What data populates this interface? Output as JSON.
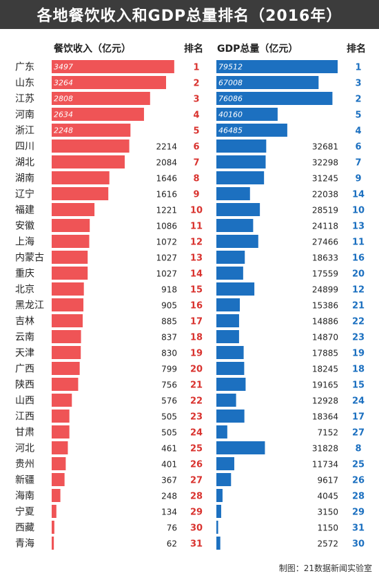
{
  "title": "各地餐饮收入和GDP总量排名（2016年）",
  "headers": {
    "catering": "餐饮收入（亿元）",
    "rank": "排名",
    "gdp": "GDP总量（亿元）",
    "gdp_rank": "排名"
  },
  "credit": "制图：21数据新闻实验室",
  "colors": {
    "catering_bar": "#ef5456",
    "gdp_bar": "#1c70c0",
    "catering_rank": "#d9332f",
    "gdp_rank": "#1c70c0",
    "title_bg": "#3c3c3c"
  },
  "chart_data": {
    "type": "bar",
    "orientation": "horizontal",
    "categories": [
      "广东",
      "山东",
      "江苏",
      "河南",
      "浙江",
      "四川",
      "湖北",
      "湖南",
      "辽宁",
      "福建",
      "安徽",
      "上海",
      "内蒙古",
      "重庆",
      "北京",
      "黑龙江",
      "吉林",
      "云南",
      "天津",
      "广西",
      "陕西",
      "山西",
      "江西",
      "甘肃",
      "河北",
      "贵州",
      "新疆",
      "海南",
      "宁夏",
      "西藏",
      "青海"
    ],
    "series": [
      {
        "name": "餐饮收入（亿元）",
        "values": [
          3497,
          3264,
          2808,
          2634,
          2248,
          2214,
          2084,
          1646,
          1616,
          1221,
          1086,
          1072,
          1027,
          1027,
          918,
          905,
          885,
          837,
          830,
          799,
          756,
          576,
          505,
          505,
          461,
          401,
          367,
          248,
          134,
          76,
          62
        ],
        "ranks": [
          1,
          2,
          3,
          4,
          5,
          6,
          7,
          8,
          9,
          10,
          11,
          12,
          13,
          14,
          15,
          16,
          17,
          18,
          19,
          20,
          21,
          22,
          23,
          24,
          25,
          26,
          27,
          28,
          29,
          30,
          31
        ]
      },
      {
        "name": "GDP总量（亿元）",
        "values": [
          79512,
          67008,
          76086,
          40160,
          46485,
          32681,
          32298,
          31245,
          22038,
          28519,
          24118,
          27466,
          18633,
          17559,
          24899,
          15386,
          14886,
          14870,
          17885,
          18245,
          19165,
          12928,
          18364,
          7152,
          31828,
          11734,
          9617,
          4045,
          3150,
          1150,
          2572
        ],
        "ranks": [
          1,
          3,
          2,
          5,
          4,
          6,
          7,
          9,
          14,
          10,
          13,
          11,
          16,
          20,
          12,
          21,
          22,
          23,
          19,
          18,
          15,
          24,
          17,
          27,
          8,
          25,
          26,
          28,
          29,
          31,
          30
        ]
      }
    ]
  }
}
